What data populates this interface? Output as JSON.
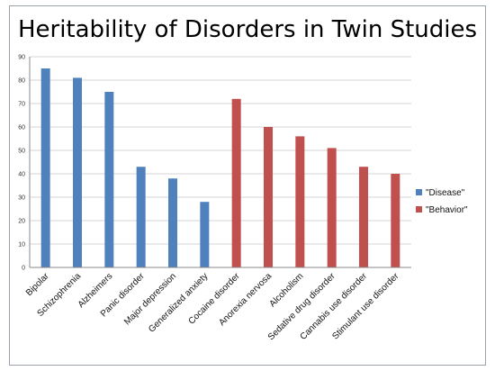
{
  "chart_data": {
    "type": "bar",
    "title": "Heritability of Disorders in Twin Studies",
    "categories": [
      "Bipolar",
      "Schizophrenia",
      "Alzheimers",
      "Panic disorder",
      "Major depression",
      "Generalized anxiety",
      "Cocaine disorder",
      "Anorexia nervosa",
      "Alcoholism",
      "Sedative drug disorder",
      "Cannabis use disorder",
      "Stimulant use disorder"
    ],
    "series": [
      {
        "name": "\"Disease\"",
        "color": "#4f81bd",
        "values": [
          85,
          81,
          75,
          43,
          38,
          28,
          null,
          null,
          null,
          null,
          null,
          null
        ]
      },
      {
        "name": "\"Behavior\"",
        "color": "#c0504d",
        "values": [
          null,
          null,
          null,
          null,
          null,
          null,
          72,
          60,
          56,
          51,
          43,
          40
        ]
      }
    ],
    "ylim": [
      0,
      90
    ],
    "yticks": [
      0,
      10,
      20,
      30,
      40,
      50,
      60,
      70,
      80,
      90
    ],
    "grid": true,
    "legend": "right"
  }
}
